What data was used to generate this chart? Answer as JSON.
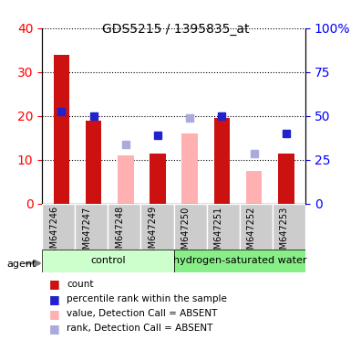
{
  "title": "GDS5215 / 1395835_at",
  "samples": [
    "GSM647246",
    "GSM647247",
    "GSM647248",
    "GSM647249",
    "GSM647250",
    "GSM647251",
    "GSM647252",
    "GSM647253"
  ],
  "red_bars": [
    34,
    19,
    null,
    11.5,
    null,
    19.5,
    null,
    11.5
  ],
  "pink_bars": [
    null,
    null,
    11,
    null,
    16,
    null,
    7.5,
    null
  ],
  "blue_squares": [
    21,
    20,
    null,
    15.5,
    null,
    20,
    null,
    16
  ],
  "light_blue_squares": [
    null,
    null,
    13.5,
    null,
    19.5,
    null,
    11.5,
    null
  ],
  "ylim_left": [
    0,
    40
  ],
  "ylim_right": [
    0,
    100
  ],
  "yticks_left": [
    0,
    10,
    20,
    30,
    40
  ],
  "yticks_right": [
    0,
    25,
    50,
    75,
    100
  ],
  "ytick_labels_right": [
    "0",
    "25",
    "50",
    "75",
    "100%"
  ],
  "control_group": [
    "GSM647246",
    "GSM647247",
    "GSM647248",
    "GSM647249"
  ],
  "treatment_group": [
    "GSM647250",
    "GSM647251",
    "GSM647252",
    "GSM647253"
  ],
  "control_label": "control",
  "treatment_label": "hydrogen-saturated water",
  "agent_label": "agent",
  "bar_width": 0.5,
  "red_color": "#CC1111",
  "pink_color": "#FFB0B0",
  "blue_color": "#2222CC",
  "light_blue_color": "#AAAADD",
  "control_bg": "#CCFFCC",
  "treatment_bg": "#88EE88",
  "sample_bg": "#CCCCCC",
  "legend_items": [
    {
      "color": "#CC1111",
      "marker": "s",
      "label": "count"
    },
    {
      "color": "#2222CC",
      "marker": "s",
      "label": "percentile rank within the sample"
    },
    {
      "color": "#FFB0B0",
      "marker": "s",
      "label": "value, Detection Call = ABSENT"
    },
    {
      "color": "#AAAADD",
      "marker": "s",
      "label": "rank, Detection Call = ABSENT"
    }
  ]
}
